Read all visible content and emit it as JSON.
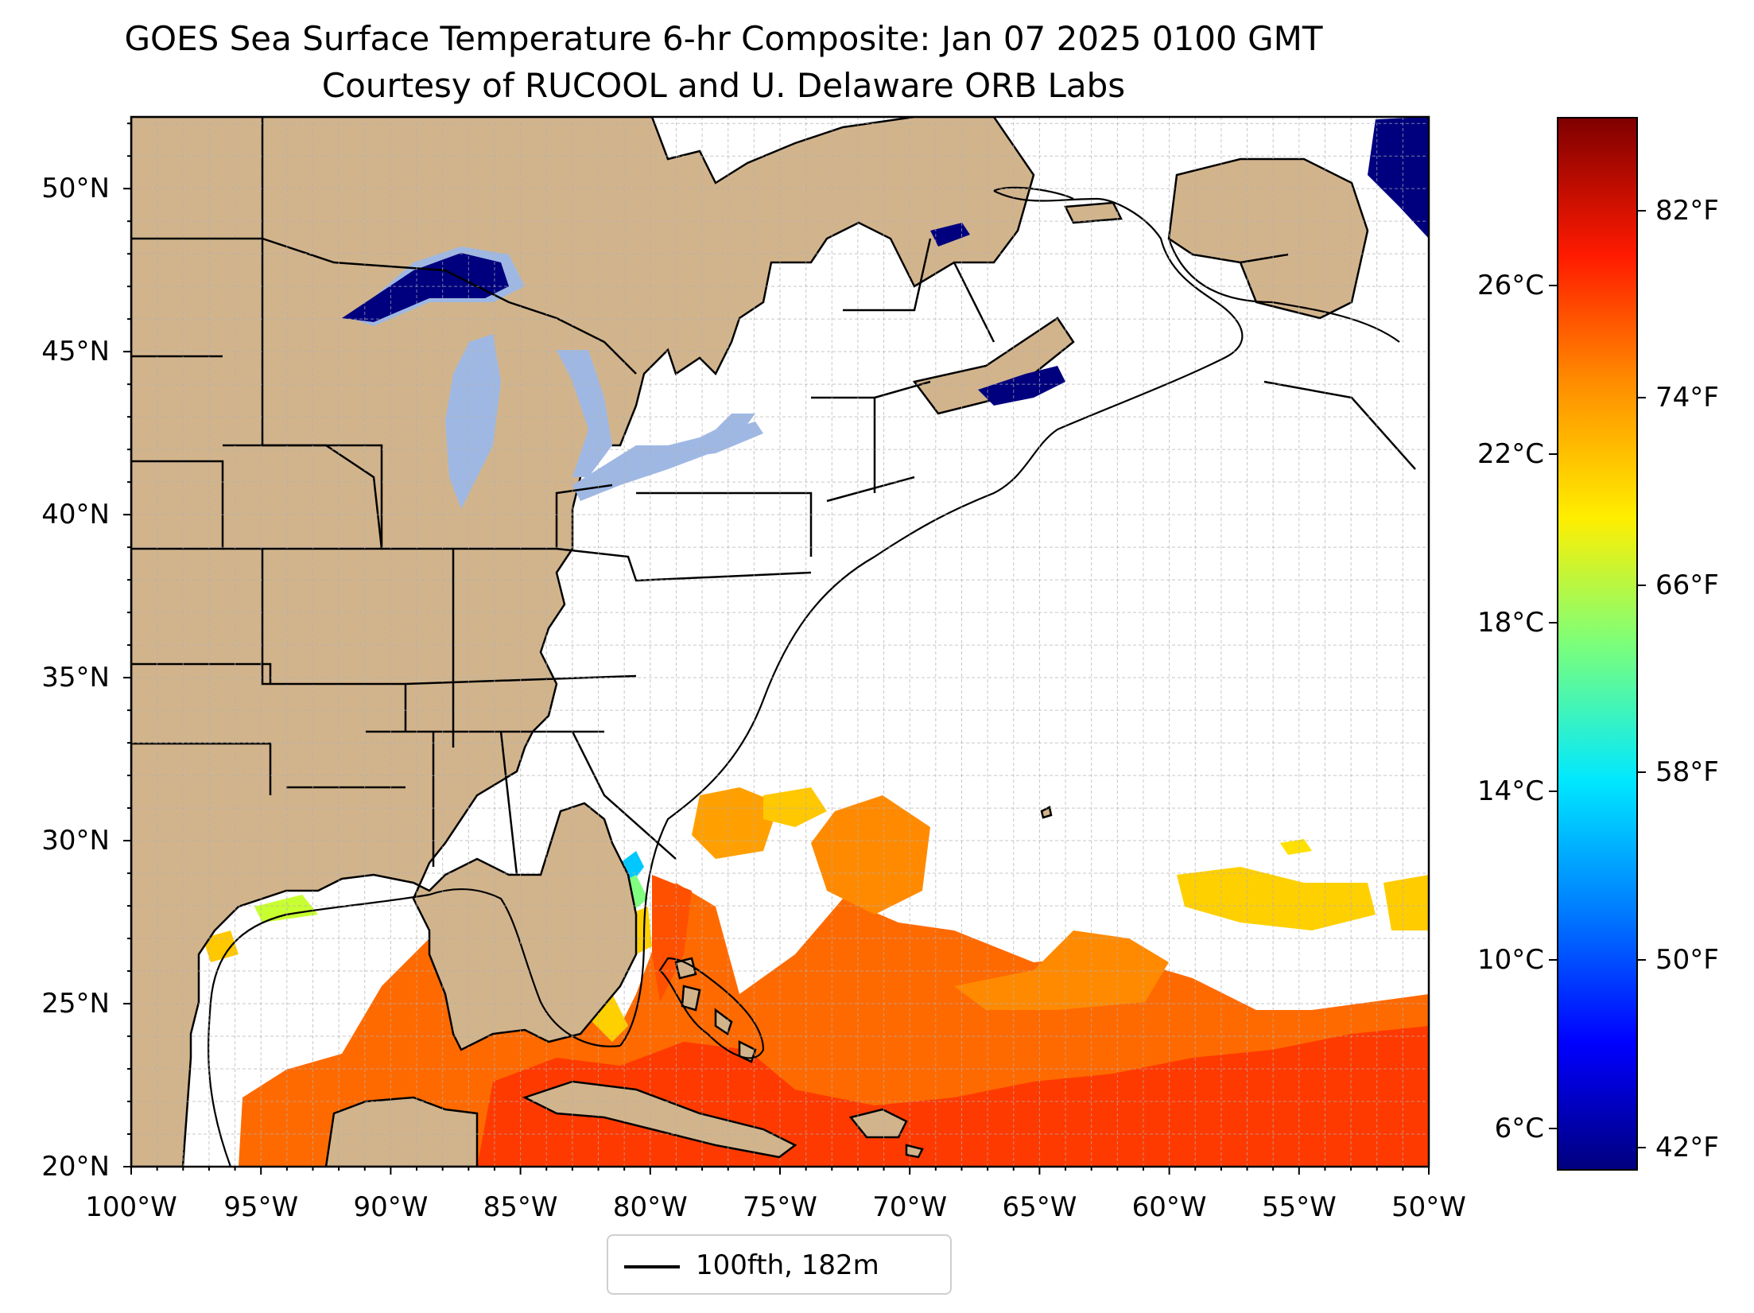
{
  "title": {
    "line1": "GOES Sea Surface Temperature 6-hr Composite: Jan 07 2025 0100 GMT",
    "line2": "Courtesy of RUCOOL and U. Delaware ORB Labs"
  },
  "map": {
    "extent": {
      "lon_min": -100,
      "lon_max": -50,
      "lat_min": 20,
      "lat_max": 52.2
    },
    "colors": {
      "land": "#d2b48c",
      "lakes": "#9fb8e3",
      "ocean_nodata": "#ffffff",
      "grid": "#b0b0b0",
      "border": "#000000"
    },
    "lon_ticks": [
      {
        "value": -100,
        "label": "100°W"
      },
      {
        "value": -95,
        "label": "95°W"
      },
      {
        "value": -90,
        "label": "90°W"
      },
      {
        "value": -85,
        "label": "85°W"
      },
      {
        "value": -80,
        "label": "80°W"
      },
      {
        "value": -75,
        "label": "75°W"
      },
      {
        "value": -70,
        "label": "70°W"
      },
      {
        "value": -65,
        "label": "65°W"
      },
      {
        "value": -60,
        "label": "60°W"
      },
      {
        "value": -55,
        "label": "55°W"
      },
      {
        "value": -50,
        "label": "50°W"
      }
    ],
    "lat_ticks": [
      {
        "value": 20,
        "label": "20°N"
      },
      {
        "value": 25,
        "label": "25°N"
      },
      {
        "value": 30,
        "label": "30°N"
      },
      {
        "value": 35,
        "label": "35°N"
      },
      {
        "value": 40,
        "label": "40°N"
      },
      {
        "value": 45,
        "label": "45°N"
      },
      {
        "value": 50,
        "label": "50°N"
      }
    ]
  },
  "legend": {
    "label": "100fth, 182m",
    "color": "#000000"
  },
  "colorbar": {
    "range_c": [
      5,
      30
    ],
    "celsius_ticks": [
      {
        "value": 6,
        "label": "6°C"
      },
      {
        "value": 10,
        "label": "10°C"
      },
      {
        "value": 14,
        "label": "14°C"
      },
      {
        "value": 18,
        "label": "18°C"
      },
      {
        "value": 22,
        "label": "22°C"
      },
      {
        "value": 26,
        "label": "26°C"
      }
    ],
    "fahrenheit_ticks": [
      {
        "value": 42,
        "label": "42°F"
      },
      {
        "value": 50,
        "label": "50°F"
      },
      {
        "value": 58,
        "label": "58°F"
      },
      {
        "value": 66,
        "label": "66°F"
      },
      {
        "value": 74,
        "label": "74°F"
      },
      {
        "value": 82,
        "label": "82°F"
      }
    ],
    "colormap": "jet"
  }
}
